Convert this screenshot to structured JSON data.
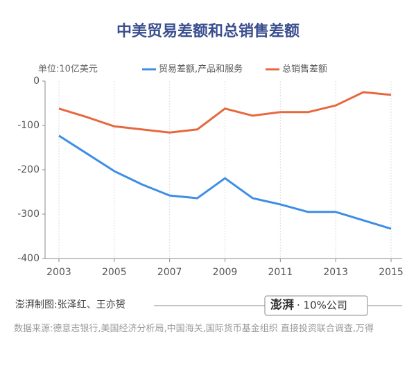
{
  "chart_data": {
    "type": "line",
    "title": "中美贸易差额和总销售差额",
    "unit_label": "单位:10亿美元",
    "x": [
      2003,
      2004,
      2005,
      2006,
      2007,
      2008,
      2009,
      2010,
      2011,
      2012,
      2013,
      2014,
      2015
    ],
    "series": [
      {
        "name": "贸易差额,产品和服务",
        "color": "#3d8ee6",
        "values": [
          -123,
          -163,
          -203,
          -233,
          -258,
          -264,
          -219,
          -264,
          -278,
          -295,
          -295,
          -314,
          -333
        ]
      },
      {
        "name": "总销售差额",
        "color": "#e8683d",
        "values": [
          -62,
          -81,
          -102,
          -109,
          -116,
          -109,
          -62,
          -78,
          -70,
          -70,
          -55,
          -25,
          -31
        ]
      }
    ],
    "xlim": [
      2002.5,
      2015.4
    ],
    "xticks": [
      2003,
      2005,
      2007,
      2009,
      2011,
      2013,
      2015
    ],
    "ylim": [
      -400,
      0
    ],
    "yticks": [
      0,
      -100,
      -200,
      -300,
      -400
    ],
    "grid": "x"
  },
  "footer": {
    "credit": "澎湃制图:张泽红、王亦赟",
    "logo": "澎湃",
    "brand": "· 10%公司",
    "source": "数据来源:德意志银行,美国经济分析局,中国海关,国际货币基金组织 直接投资联合调查,万得"
  }
}
